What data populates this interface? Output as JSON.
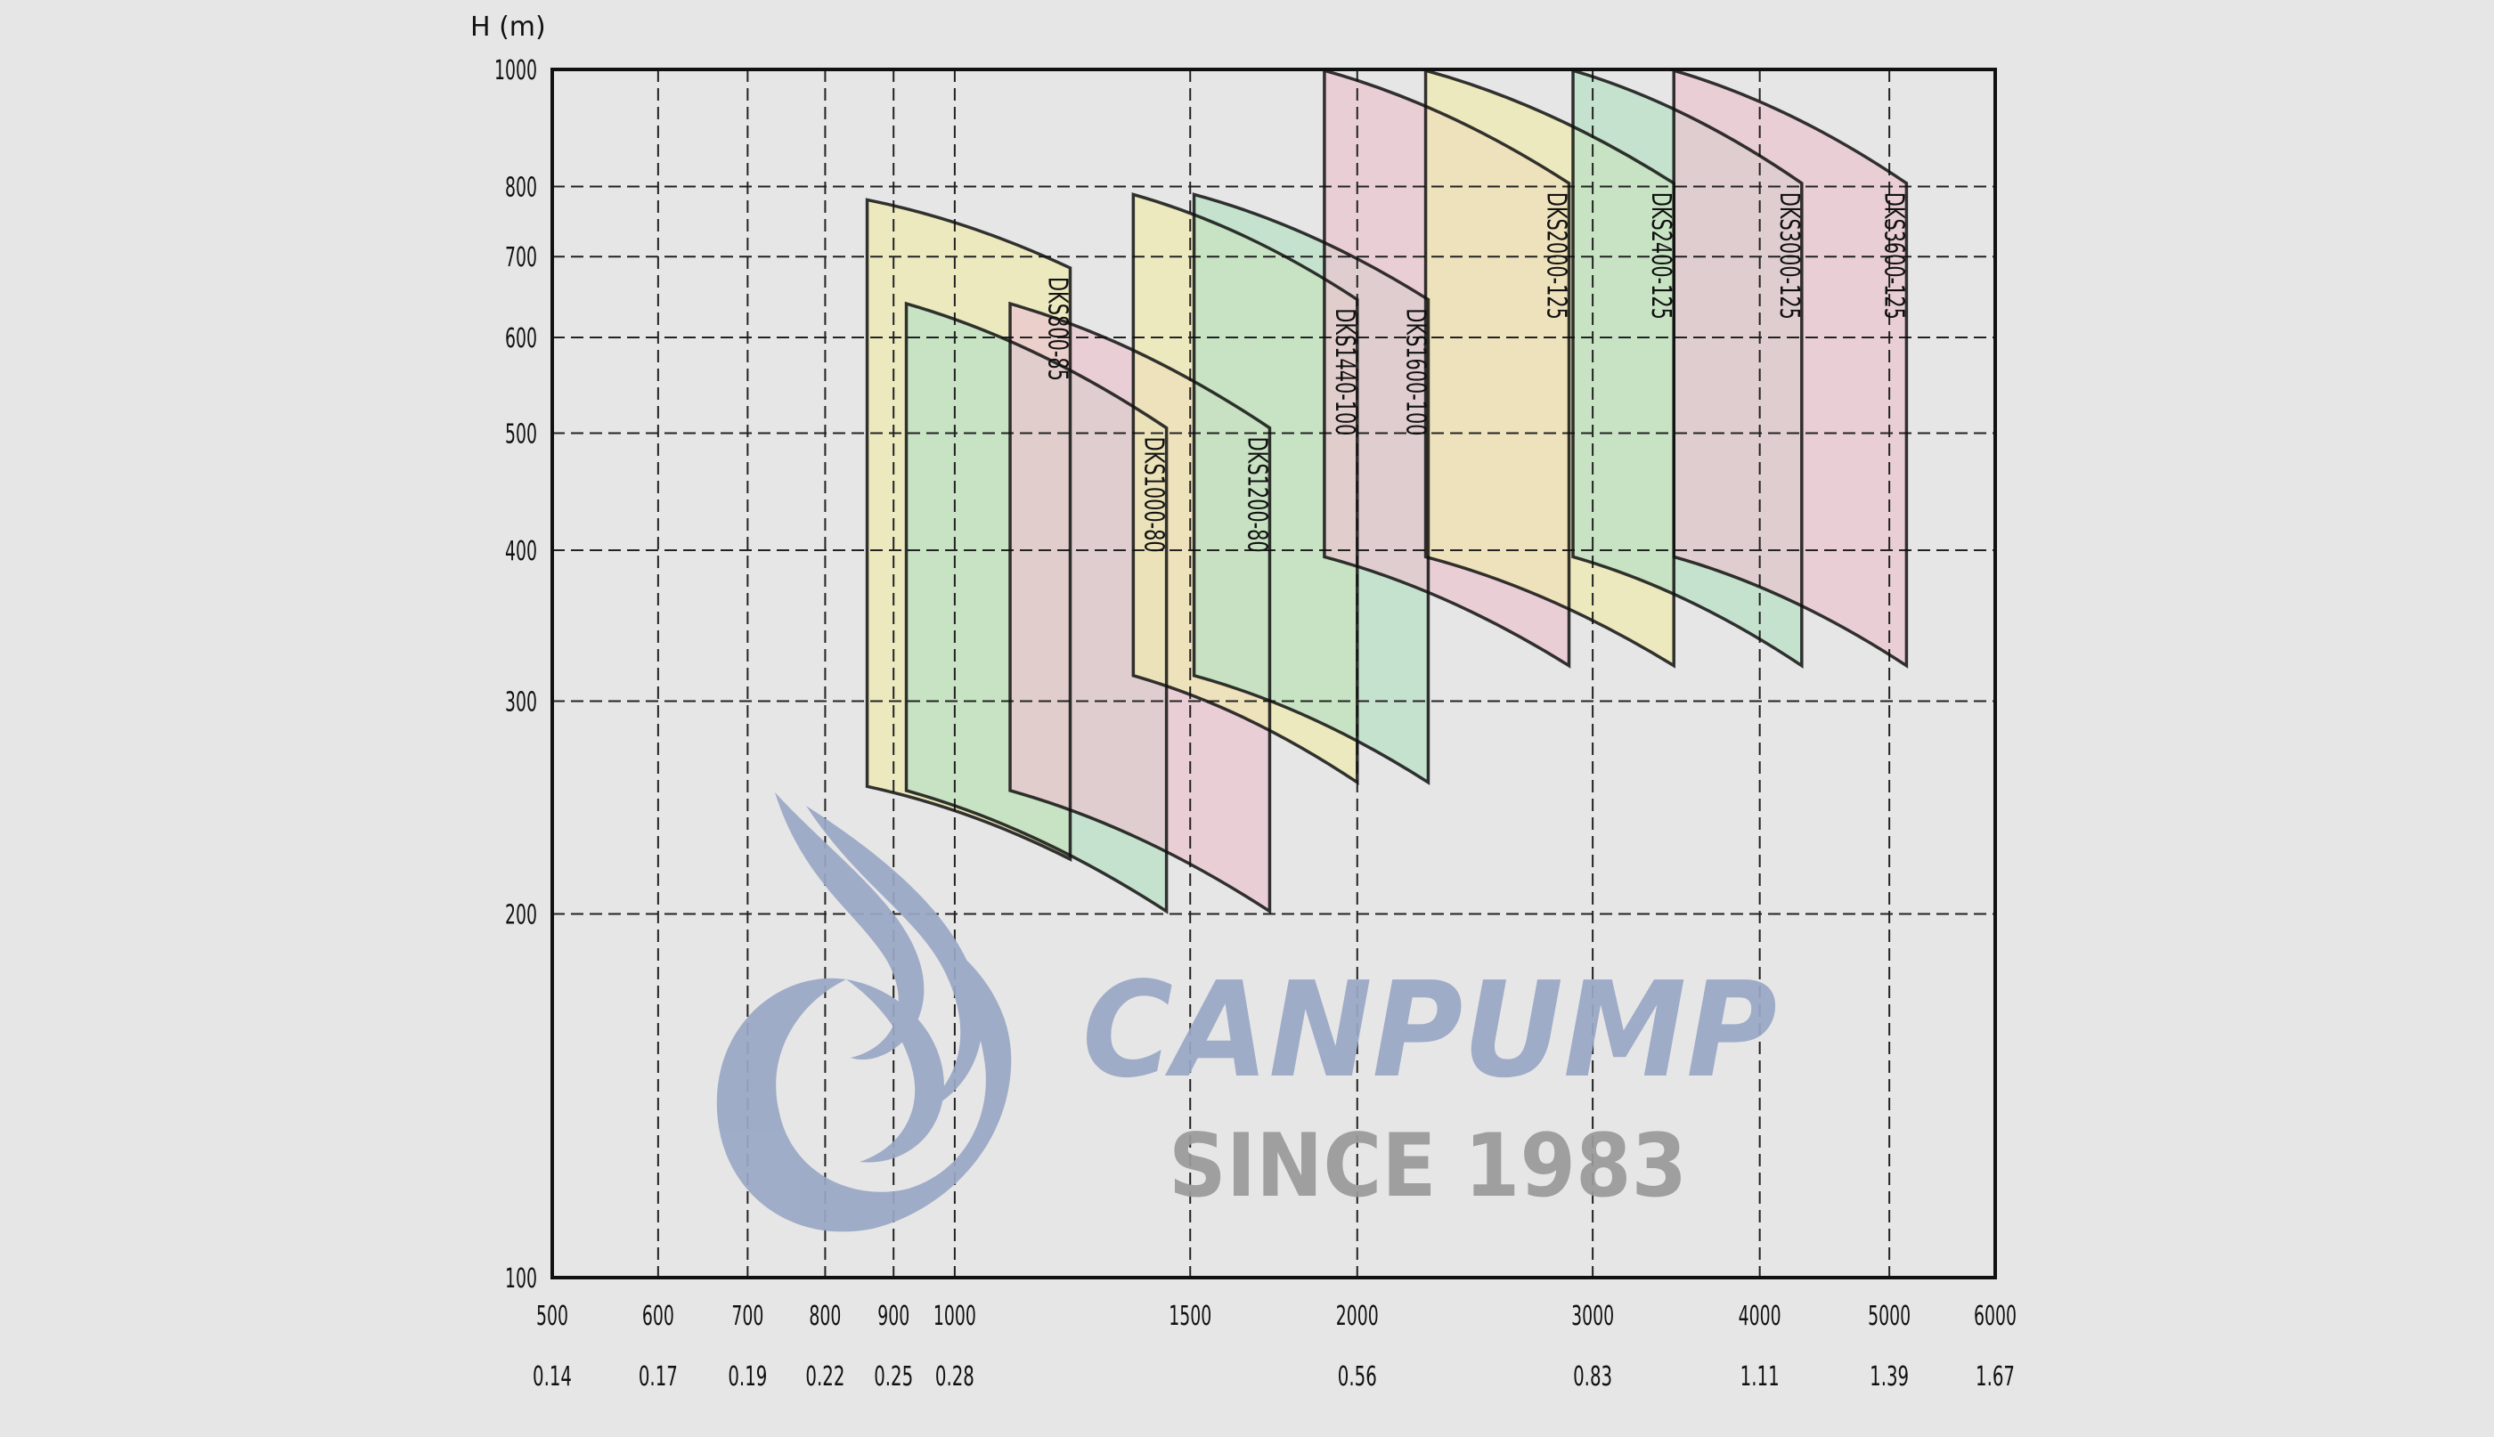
{
  "chart_data": {
    "type": "area",
    "y_axis": {
      "label": "H (m)",
      "scale": "log",
      "range": [
        100,
        1000
      ],
      "ticks": [
        100,
        200,
        300,
        400,
        500,
        600,
        700,
        800,
        1000
      ],
      "tick_labels": [
        "100",
        "200",
        "300",
        "400",
        "500",
        "600",
        "700",
        "800",
        "1000"
      ]
    },
    "x_axis": {
      "label": "",
      "scale": "log",
      "range": [
        500,
        6000
      ],
      "ticks": [
        500,
        600,
        700,
        800,
        900,
        1000,
        1500,
        2000,
        3000,
        4000,
        5000,
        6000
      ],
      "tick_labels": [
        "500",
        "600",
        "700",
        "800",
        "900",
        "1000",
        "1500",
        "2000",
        "3000",
        "4000",
        "5000",
        "6000"
      ],
      "secondary_ticks": [
        500,
        600,
        700,
        800,
        900,
        1000,
        2000,
        3000,
        4000,
        5000,
        6000
      ],
      "secondary_labels": [
        "0.14",
        "0.17",
        "0.19",
        "0.22",
        "0.25",
        "0.28",
        "0.56",
        "0.83",
        "1.11",
        "1.39",
        "1.67"
      ]
    },
    "grid": "dashed",
    "series": [
      {
        "name": "DKS800-85",
        "color": "#efeab0",
        "q": [
          860,
          1220
        ],
        "h_top": [
          780,
          685
        ],
        "h_bottom": [
          255,
          222
        ]
      },
      {
        "name": "DKS1000-80",
        "color": "#b9e0c5",
        "q": [
          920,
          1440
        ],
        "h_top": [
          640,
          505
        ],
        "h_bottom": [
          253,
          201
        ]
      },
      {
        "name": "DKS1200-80",
        "color": "#eac5d0",
        "q": [
          1100,
          1720
        ],
        "h_top": [
          640,
          505
        ],
        "h_bottom": [
          253,
          201
        ]
      },
      {
        "name": "DKS1440-100",
        "color": "#efeab0",
        "q": [
          1360,
          2000
        ],
        "h_top": [
          788,
          645
        ],
        "h_bottom": [
          315,
          257
        ]
      },
      {
        "name": "DKS1600-100",
        "color": "#b9e0c5",
        "q": [
          1510,
          2260
        ],
        "h_top": [
          788,
          645
        ],
        "h_bottom": [
          315,
          257
        ]
      },
      {
        "name": "DKS2000-125",
        "color": "#eac5d0",
        "q": [
          1890,
          2880
        ],
        "h_top": [
          998,
          805
        ],
        "h_bottom": [
          395,
          321
        ]
      },
      {
        "name": "DKS2400-125",
        "color": "#efeab0",
        "q": [
          2250,
          3450
        ],
        "h_top": [
          998,
          805
        ],
        "h_bottom": [
          395,
          321
        ]
      },
      {
        "name": "DKS3000-125",
        "color": "#b9e0c5",
        "q": [
          2900,
          4300
        ],
        "h_top": [
          998,
          805
        ],
        "h_bottom": [
          395,
          321
        ]
      },
      {
        "name": "DKS3600-125",
        "color": "#eac5d0",
        "q": [
          3450,
          5150
        ],
        "h_top": [
          998,
          805
        ],
        "h_bottom": [
          395,
          321
        ]
      }
    ]
  },
  "watermark": {
    "brand": "CANPUMP",
    "tagline": "SINCE 1983",
    "color": "#9aa8c6"
  }
}
